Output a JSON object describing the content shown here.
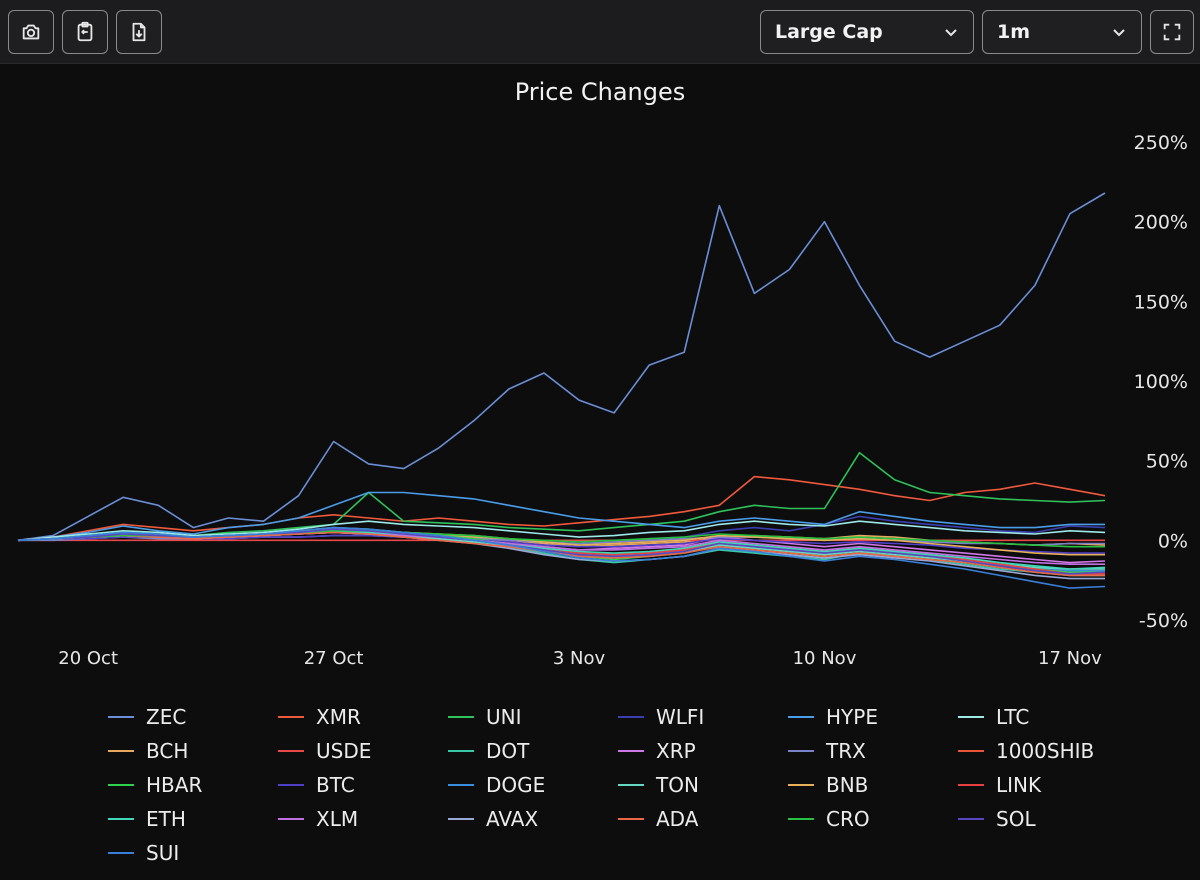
{
  "toolbar": {
    "buttons": [
      {
        "name": "screenshot-button",
        "icon": "camera-icon"
      },
      {
        "name": "copy-button",
        "icon": "clipboard-icon"
      },
      {
        "name": "download-button",
        "icon": "download-icon"
      }
    ],
    "cap_select": {
      "value": "Large Cap"
    },
    "period_select": {
      "value": "1m"
    },
    "fullscreen_icon": "fullscreen-icon"
  },
  "chart_data": {
    "type": "line",
    "title": "Price Changes",
    "xlabel": "",
    "ylabel": "",
    "ylim": [
      -50,
      250
    ],
    "yticks": [
      "250%",
      "200%",
      "150%",
      "100%",
      "50%",
      "0%",
      "-50%"
    ],
    "yticks_values": [
      250,
      200,
      150,
      100,
      50,
      0,
      -50
    ],
    "xticks": [
      "20 Oct",
      "27 Oct",
      "3 Nov",
      "10 Nov",
      "17 Nov"
    ],
    "xticks_values": [
      2,
      9,
      16,
      23,
      30
    ],
    "x": [
      0,
      1,
      2,
      3,
      4,
      5,
      6,
      7,
      8,
      9,
      10,
      11,
      12,
      13,
      14,
      15,
      16,
      17,
      18,
      19,
      20,
      21,
      22,
      23,
      24,
      25,
      26,
      27,
      28,
      29,
      30,
      31
    ],
    "series": [
      {
        "name": "ZEC",
        "color": "#6b8fd6",
        "values": [
          0,
          3,
          15,
          27,
          22,
          8,
          14,
          12,
          28,
          62,
          48,
          45,
          58,
          75,
          95,
          105,
          88,
          80,
          110,
          118,
          210,
          155,
          170,
          200,
          160,
          125,
          115,
          125,
          135,
          160,
          205,
          218
        ]
      },
      {
        "name": "XMR",
        "color": "#f05a3c",
        "values": [
          0,
          2,
          6,
          10,
          8,
          6,
          8,
          10,
          14,
          16,
          14,
          12,
          14,
          12,
          10,
          9,
          11,
          13,
          15,
          18,
          22,
          40,
          38,
          35,
          32,
          28,
          25,
          30,
          32,
          36,
          32,
          28
        ]
      },
      {
        "name": "UNI",
        "color": "#2fc15a",
        "values": [
          0,
          1,
          3,
          5,
          4,
          3,
          5,
          6,
          8,
          10,
          30,
          12,
          11,
          10,
          8,
          7,
          6,
          8,
          10,
          12,
          18,
          22,
          20,
          20,
          55,
          38,
          30,
          28,
          26,
          25,
          24,
          25
        ]
      },
      {
        "name": "WLFI",
        "color": "#3b3fb0",
        "values": [
          0,
          1,
          2,
          4,
          3,
          2,
          3,
          5,
          6,
          8,
          7,
          5,
          4,
          2,
          0,
          -2,
          -3,
          -1,
          1,
          2,
          6,
          8,
          6,
          10,
          15,
          12,
          10,
          8,
          6,
          5,
          9,
          8
        ]
      },
      {
        "name": "HYPE",
        "color": "#4a9de8",
        "values": [
          0,
          2,
          5,
          9,
          6,
          4,
          8,
          10,
          14,
          22,
          30,
          30,
          28,
          26,
          22,
          18,
          14,
          12,
          10,
          8,
          12,
          14,
          12,
          10,
          18,
          15,
          12,
          10,
          8,
          8,
          10,
          10
        ]
      },
      {
        "name": "LTC",
        "color": "#9ee8e8",
        "values": [
          0,
          2,
          4,
          6,
          5,
          3,
          4,
          5,
          7,
          10,
          12,
          10,
          9,
          8,
          6,
          4,
          2,
          3,
          5,
          6,
          10,
          12,
          10,
          9,
          12,
          10,
          8,
          6,
          5,
          4,
          6,
          5
        ]
      },
      {
        "name": "BCH",
        "color": "#e8a860",
        "values": [
          0,
          1,
          3,
          4,
          3,
          2,
          3,
          4,
          5,
          6,
          5,
          4,
          3,
          2,
          0,
          -2,
          -4,
          -3,
          -2,
          -1,
          2,
          3,
          2,
          1,
          3,
          2,
          0,
          -1,
          -2,
          -3,
          -2,
          -3
        ]
      },
      {
        "name": "USDE",
        "color": "#e84848",
        "values": [
          0,
          0,
          0,
          0,
          0,
          0,
          0,
          0,
          0,
          0,
          0,
          0,
          0,
          0,
          0,
          0,
          0,
          0,
          0,
          0,
          0,
          0,
          0,
          0,
          0,
          0,
          0,
          0,
          0,
          0,
          0,
          0
        ]
      },
      {
        "name": "DOT",
        "color": "#38c8a8",
        "values": [
          0,
          1,
          3,
          5,
          4,
          2,
          3,
          4,
          5,
          7,
          6,
          4,
          2,
          0,
          -4,
          -8,
          -12,
          -14,
          -12,
          -10,
          -6,
          -8,
          -10,
          -12,
          -8,
          -10,
          -12,
          -15,
          -18,
          -20,
          -22,
          -22
        ]
      },
      {
        "name": "XRP",
        "color": "#d078e8",
        "values": [
          0,
          1,
          2,
          4,
          3,
          2,
          2,
          3,
          4,
          6,
          5,
          3,
          2,
          0,
          -2,
          -4,
          -6,
          -5,
          -4,
          -3,
          2,
          0,
          -2,
          -4,
          -2,
          -4,
          -6,
          -8,
          -10,
          -12,
          -14,
          -13
        ]
      },
      {
        "name": "TRX",
        "color": "#7a82c8",
        "values": [
          0,
          0,
          1,
          2,
          1,
          1,
          1,
          2,
          2,
          3,
          3,
          2,
          2,
          1,
          0,
          -1,
          -2,
          -1,
          0,
          1,
          2,
          2,
          1,
          0,
          1,
          0,
          -1,
          -2,
          -2,
          -3,
          -2,
          -2
        ]
      },
      {
        "name": "1000SHIB",
        "color": "#e85838",
        "values": [
          0,
          1,
          2,
          3,
          2,
          1,
          2,
          3,
          4,
          5,
          4,
          2,
          1,
          -1,
          -3,
          -6,
          -9,
          -10,
          -8,
          -6,
          -2,
          -4,
          -6,
          -8,
          -5,
          -7,
          -9,
          -12,
          -15,
          -18,
          -20,
          -20
        ]
      },
      {
        "name": "HBAR",
        "color": "#30d050",
        "values": [
          0,
          1,
          3,
          5,
          4,
          2,
          3,
          4,
          6,
          8,
          7,
          5,
          3,
          1,
          -2,
          -6,
          -10,
          -12,
          -10,
          -8,
          -3,
          -5,
          -7,
          -9,
          -6,
          -8,
          -10,
          -13,
          -16,
          -18,
          -20,
          -19
        ]
      },
      {
        "name": "BTC",
        "color": "#5040c8",
        "values": [
          0,
          1,
          1,
          2,
          2,
          1,
          1,
          2,
          2,
          3,
          3,
          2,
          1,
          0,
          -1,
          -3,
          -4,
          -4,
          -3,
          -2,
          1,
          0,
          -1,
          -2,
          -1,
          -2,
          -3,
          -5,
          -6,
          -7,
          -8,
          -8
        ]
      },
      {
        "name": "DOGE",
        "color": "#3a90e0",
        "values": [
          0,
          1,
          2,
          4,
          3,
          2,
          3,
          4,
          5,
          7,
          6,
          4,
          2,
          0,
          -3,
          -6,
          -9,
          -11,
          -9,
          -7,
          -2,
          -4,
          -6,
          -8,
          -5,
          -7,
          -9,
          -12,
          -15,
          -17,
          -19,
          -19
        ]
      },
      {
        "name": "TON",
        "color": "#66d8c0",
        "values": [
          0,
          1,
          2,
          3,
          2,
          1,
          2,
          3,
          4,
          5,
          4,
          3,
          1,
          -1,
          -3,
          -6,
          -8,
          -9,
          -8,
          -7,
          -3,
          -5,
          -7,
          -9,
          -7,
          -9,
          -11,
          -13,
          -15,
          -17,
          -18,
          -18
        ]
      },
      {
        "name": "BNB",
        "color": "#e8b058",
        "values": [
          0,
          1,
          2,
          3,
          3,
          2,
          3,
          4,
          5,
          6,
          6,
          5,
          4,
          3,
          1,
          -1,
          -3,
          -2,
          -1,
          0,
          3,
          2,
          1,
          0,
          1,
          0,
          -2,
          -4,
          -6,
          -8,
          -9,
          -9
        ]
      },
      {
        "name": "LINK",
        "color": "#e84040",
        "values": [
          0,
          1,
          2,
          4,
          3,
          2,
          3,
          4,
          5,
          7,
          6,
          4,
          2,
          0,
          -2,
          -5,
          -8,
          -9,
          -8,
          -6,
          -1,
          -3,
          -5,
          -7,
          -5,
          -7,
          -9,
          -12,
          -15,
          -18,
          -21,
          -21
        ]
      },
      {
        "name": "ETH",
        "color": "#40d8b8",
        "values": [
          0,
          1,
          2,
          3,
          3,
          2,
          3,
          4,
          5,
          6,
          5,
          3,
          2,
          0,
          -2,
          -5,
          -7,
          -8,
          -7,
          -5,
          -1,
          -3,
          -5,
          -7,
          -5,
          -7,
          -9,
          -11,
          -14,
          -16,
          -18,
          -17
        ]
      },
      {
        "name": "XLM",
        "color": "#c070e0",
        "values": [
          0,
          1,
          2,
          3,
          2,
          1,
          2,
          3,
          4,
          5,
          4,
          3,
          2,
          0,
          -2,
          -4,
          -6,
          -6,
          -5,
          -4,
          0,
          -2,
          -4,
          -6,
          -4,
          -6,
          -8,
          -10,
          -12,
          -14,
          -15,
          -15
        ]
      },
      {
        "name": "AVAX",
        "color": "#9aa8d8",
        "values": [
          0,
          1,
          2,
          3,
          2,
          1,
          2,
          3,
          4,
          5,
          4,
          2,
          0,
          -2,
          -5,
          -9,
          -12,
          -13,
          -12,
          -10,
          -5,
          -7,
          -9,
          -11,
          -9,
          -11,
          -13,
          -16,
          -19,
          -22,
          -24,
          -24
        ]
      },
      {
        "name": "ADA",
        "color": "#e86848",
        "values": [
          0,
          1,
          2,
          3,
          2,
          1,
          2,
          3,
          4,
          5,
          4,
          2,
          0,
          -2,
          -4,
          -7,
          -10,
          -11,
          -10,
          -8,
          -4,
          -6,
          -8,
          -10,
          -8,
          -10,
          -12,
          -14,
          -17,
          -20,
          -22,
          -22
        ]
      },
      {
        "name": "CRO",
        "color": "#28c040",
        "values": [
          0,
          1,
          2,
          3,
          3,
          2,
          3,
          4,
          5,
          6,
          6,
          5,
          4,
          3,
          1,
          0,
          -1,
          0,
          1,
          2,
          4,
          3,
          2,
          1,
          2,
          1,
          0,
          -1,
          -2,
          -3,
          -4,
          -4
        ]
      },
      {
        "name": "SOL",
        "color": "#5848c0",
        "values": [
          0,
          1,
          2,
          4,
          3,
          2,
          3,
          4,
          5,
          7,
          6,
          4,
          2,
          0,
          -3,
          -6,
          -9,
          -10,
          -9,
          -7,
          -2,
          -4,
          -6,
          -8,
          -6,
          -8,
          -10,
          -13,
          -16,
          -19,
          -21,
          -20
        ]
      },
      {
        "name": "SUI",
        "color": "#3a80d8",
        "values": [
          0,
          1,
          3,
          5,
          4,
          2,
          3,
          4,
          6,
          8,
          7,
          5,
          3,
          0,
          -3,
          -7,
          -11,
          -13,
          -12,
          -10,
          -5,
          -7,
          -10,
          -13,
          -10,
          -12,
          -15,
          -18,
          -22,
          -26,
          -30,
          -29
        ]
      }
    ]
  }
}
